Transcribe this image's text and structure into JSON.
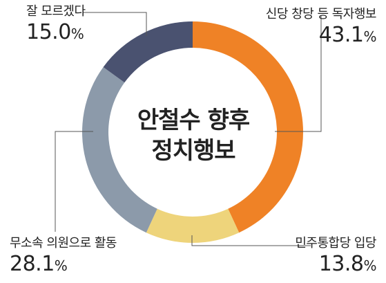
{
  "chart_data": {
    "type": "pie",
    "variant": "donut",
    "title": "안철수 향후 정치행보",
    "unit": "%",
    "slices": [
      {
        "label": "신당 창당 등 독자행보",
        "value": 43.1,
        "value_text": "43.1",
        "color": "#ef8226"
      },
      {
        "label": "민주통합당 입당",
        "value": 13.8,
        "value_text": "13.8",
        "color": "#eed47b"
      },
      {
        "label": "무소속 의원으로 활동",
        "value": 28.1,
        "value_text": "28.1",
        "color": "#8c9aaa"
      },
      {
        "label": "잘 모르겠다",
        "value": 15.0,
        "value_text": "15.0",
        "color": "#4a5270"
      }
    ]
  },
  "center_title_lines": [
    "안철수 향후",
    "정치행보"
  ]
}
